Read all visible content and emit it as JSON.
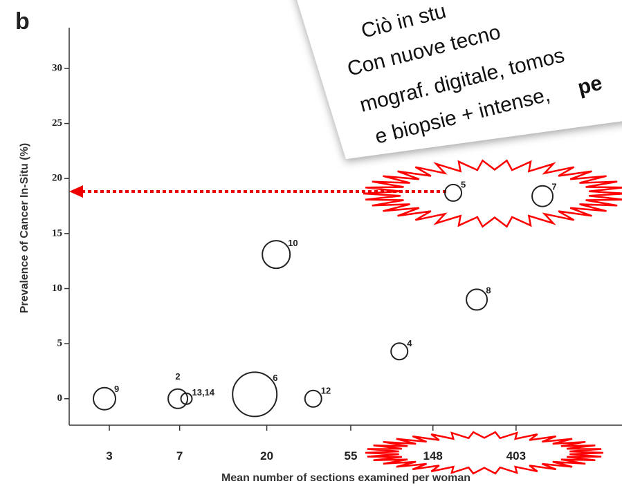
{
  "chart_data": {
    "type": "scatter",
    "panel": "b",
    "x_label": "Mean number of sections examined per woman",
    "y_label": "Prevalence of Cancer In-Situ (%)",
    "x": [
      2.83,
      6.85,
      7.6,
      17.3,
      22.4,
      35,
      98.8,
      251,
      189,
      554
    ],
    "values": [
      0,
      0,
      0,
      0.4,
      13.1,
      0,
      4.3,
      9.0,
      18.7,
      18.4
    ],
    "sizes": [
      16,
      14,
      8,
      32,
      20,
      12,
      12,
      15,
      12,
      15
    ],
    "point_labels": [
      "9",
      "2",
      "13,14",
      "6",
      "10",
      "12",
      "4",
      "8",
      "5",
      "7"
    ],
    "xscale": "log",
    "xlim": [
      1.85,
      1444
    ],
    "xticks": [
      3,
      7,
      20,
      55,
      148,
      403
    ],
    "ylim": [
      -2.4,
      33.7
    ],
    "yticks": [
      0,
      5,
      10,
      15,
      20,
      25,
      30
    ],
    "color": "#222222",
    "annotation": {
      "lines": [
        "Ciò in stu",
        "Con nuove tecno",
        "mograf. digitale, tomos",
        "e biopsie + intense,"
      ],
      "highlight": "pe"
    }
  }
}
